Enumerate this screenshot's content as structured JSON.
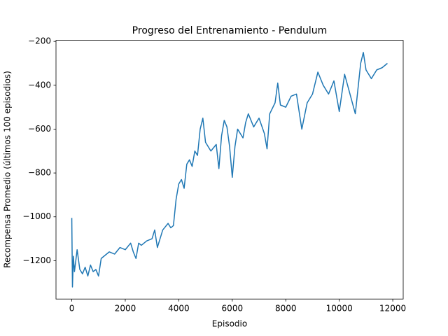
{
  "chart_data": {
    "type": "line",
    "title": "Progreso del Entrenamiento - Pendulum",
    "xlabel": "Episodio",
    "ylabel": "Recompensa Promedio (últimos 100 episodios)",
    "x": [
      0,
      25,
      60,
      100,
      200,
      300,
      400,
      500,
      600,
      700,
      800,
      900,
      1000,
      1100,
      1200,
      1400,
      1600,
      1800,
      2000,
      2200,
      2300,
      2400,
      2500,
      2600,
      2800,
      3000,
      3100,
      3200,
      3400,
      3600,
      3700,
      3800,
      3900,
      4000,
      4100,
      4200,
      4300,
      4400,
      4500,
      4600,
      4700,
      4800,
      4900,
      5000,
      5200,
      5400,
      5500,
      5600,
      5700,
      5800,
      5900,
      6000,
      6100,
      6200,
      6400,
      6500,
      6600,
      6800,
      7000,
      7200,
      7300,
      7400,
      7600,
      7700,
      7800,
      8000,
      8200,
      8400,
      8600,
      8800,
      9000,
      9200,
      9400,
      9600,
      9800,
      10000,
      10200,
      10400,
      10600,
      10800,
      10900,
      11000,
      11200,
      11400,
      11600,
      11800
    ],
    "series": [
      {
        "name": "Recompensa",
        "color": "#1f77b4",
        "values": [
          -1005,
          -1320,
          -1180,
          -1250,
          -1150,
          -1240,
          -1260,
          -1230,
          -1270,
          -1220,
          -1250,
          -1240,
          -1270,
          -1190,
          -1180,
          -1160,
          -1170,
          -1140,
          -1150,
          -1120,
          -1160,
          -1190,
          -1120,
          -1130,
          -1110,
          -1100,
          -1060,
          -1140,
          -1060,
          -1030,
          -1050,
          -1040,
          -920,
          -850,
          -830,
          -870,
          -760,
          -740,
          -770,
          -700,
          -720,
          -600,
          -550,
          -660,
          -700,
          -670,
          -780,
          -630,
          -560,
          -590,
          -680,
          -820,
          -680,
          -600,
          -640,
          -570,
          -530,
          -590,
          -550,
          -620,
          -690,
          -530,
          -480,
          -390,
          -490,
          -500,
          -450,
          -440,
          -600,
          -480,
          -440,
          -340,
          -400,
          -440,
          -380,
          -520,
          -350,
          -440,
          -530,
          -300,
          -250,
          -330,
          -370,
          -330,
          -320,
          -300
        ]
      }
    ],
    "xlim": [
      -590,
      12390
    ],
    "ylim": [
      -1375,
      -195
    ],
    "xticks": [
      0,
      2000,
      4000,
      6000,
      8000,
      10000,
      12000
    ],
    "yticks": [
      {
        "value": -1200,
        "label": "−1200"
      },
      {
        "value": -1000,
        "label": "−1000"
      },
      {
        "value": -800,
        "label": "−800"
      },
      {
        "value": -600,
        "label": "−600"
      },
      {
        "value": -400,
        "label": "−400"
      },
      {
        "value": -200,
        "label": "−200"
      }
    ]
  }
}
